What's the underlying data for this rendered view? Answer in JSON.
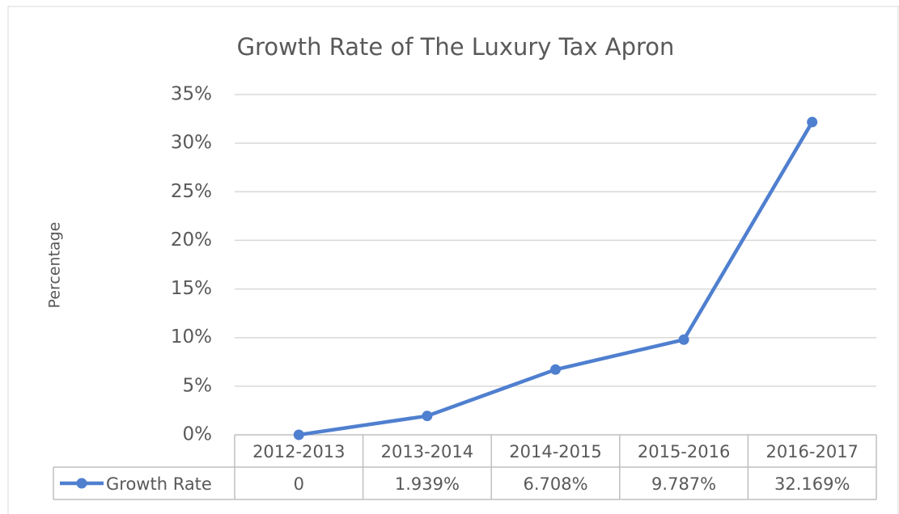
{
  "chart_data": {
    "type": "line",
    "title": "Growth Rate of The Luxury Tax Apron",
    "y_label": "Percentage",
    "categories": [
      "2012-2013",
      "2013-2014",
      "2014-2015",
      "2015-2016",
      "2016-2017"
    ],
    "series": [
      {
        "name": "Growth Rate",
        "color": "#4f7fcf",
        "values": [
          0,
          1.939,
          6.708,
          9.787,
          32.169
        ],
        "value_labels": [
          "0",
          "1.939%",
          "6.708%",
          "9.787%",
          "32.169%"
        ]
      }
    ],
    "ylim": [
      0,
      35
    ],
    "yticks": [
      {
        "value": 0,
        "label": "0%"
      },
      {
        "value": 5,
        "label": "5%"
      },
      {
        "value": 10,
        "label": "10%"
      },
      {
        "value": 15,
        "label": "15%"
      },
      {
        "value": 20,
        "label": "20%"
      },
      {
        "value": 25,
        "label": "25%"
      },
      {
        "value": 30,
        "label": "30%"
      },
      {
        "value": 35,
        "label": "35%"
      }
    ],
    "grid": true
  }
}
